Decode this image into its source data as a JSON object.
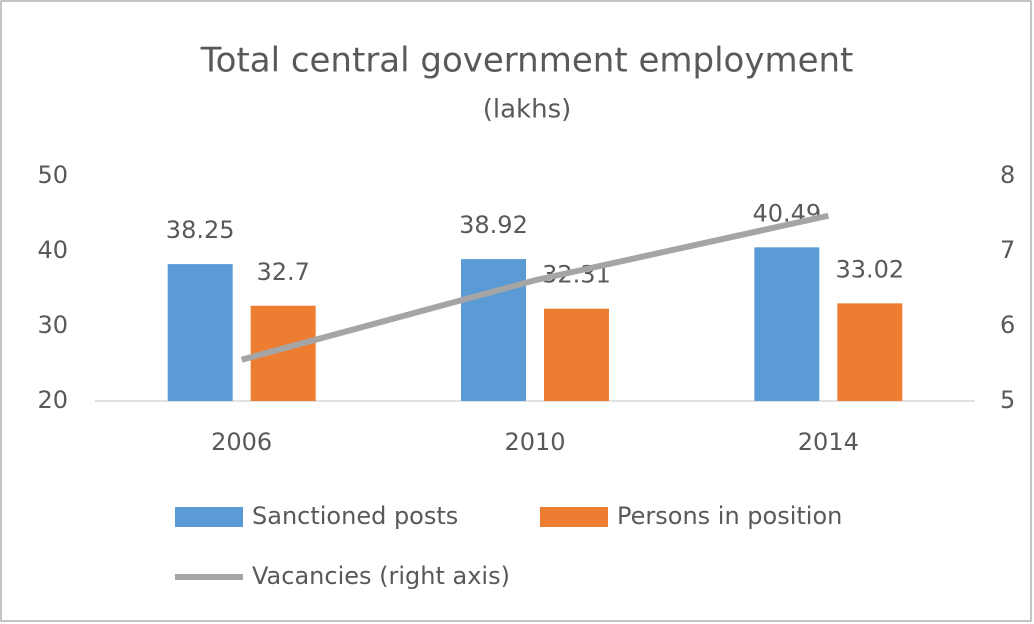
{
  "chart_data": {
    "type": "bar",
    "title": "Total central government employment",
    "subtitle": "(lakhs)",
    "categories": [
      "2006",
      "2010",
      "2014"
    ],
    "series": [
      {
        "name": "Sanctioned posts",
        "color": "#5b9bd5",
        "type": "bar",
        "values": [
          38.25,
          38.92,
          40.49
        ]
      },
      {
        "name": "Persons in position",
        "color": "#ed7d31",
        "type": "bar",
        "values": [
          32.7,
          32.31,
          33.02
        ]
      },
      {
        "name": "Vacancies (right axis)",
        "color": "#a5a5a5",
        "type": "line",
        "axis": "y2",
        "values": [
          5.55,
          6.61,
          7.47
        ]
      }
    ],
    "ylim": [
      20,
      50
    ],
    "yticks": [
      20,
      30,
      40,
      50
    ],
    "y2lim": [
      5,
      8
    ],
    "y2ticks": [
      5,
      6,
      7,
      8
    ],
    "grid": false,
    "legend": "bottom"
  }
}
